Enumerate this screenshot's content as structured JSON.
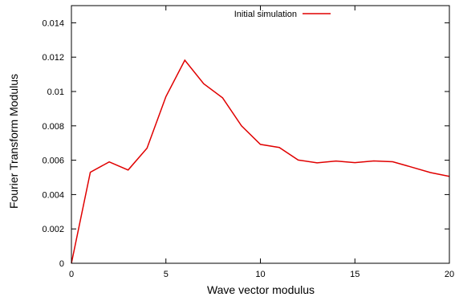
{
  "chart_data": {
    "type": "line",
    "title": "",
    "xlabel": "Wave vector modulus",
    "ylabel": "Fourier Transform Modulus",
    "xlim": [
      0,
      20
    ],
    "ylim": [
      0,
      0.015
    ],
    "x_ticks": [
      0,
      5,
      10,
      15,
      20
    ],
    "x_tick_labels": [
      "0",
      "5",
      "10",
      "15",
      "20"
    ],
    "y_ticks": [
      0,
      0.002,
      0.004,
      0.006,
      0.008,
      0.01,
      0.012,
      0.014
    ],
    "y_tick_labels": [
      "0",
      "0.002",
      "0.004",
      "0.006",
      "0.008",
      "0.01",
      "0.012",
      "0.014"
    ],
    "grid": false,
    "legend_position": "top-right",
    "series": [
      {
        "name": "Initial simulation",
        "color": "#e00000",
        "x": [
          0,
          1,
          2,
          3,
          4,
          5,
          6,
          7,
          8,
          9,
          10,
          11,
          12,
          13,
          14,
          15,
          16,
          17,
          18,
          19,
          20
        ],
        "y": [
          0,
          0.0053,
          0.0059,
          0.00543,
          0.0067,
          0.0097,
          0.01182,
          0.01045,
          0.00963,
          0.008,
          0.00692,
          0.00674,
          0.00601,
          0.00585,
          0.00595,
          0.00586,
          0.00596,
          0.00591,
          0.0056,
          0.00528,
          0.00506
        ]
      }
    ]
  }
}
